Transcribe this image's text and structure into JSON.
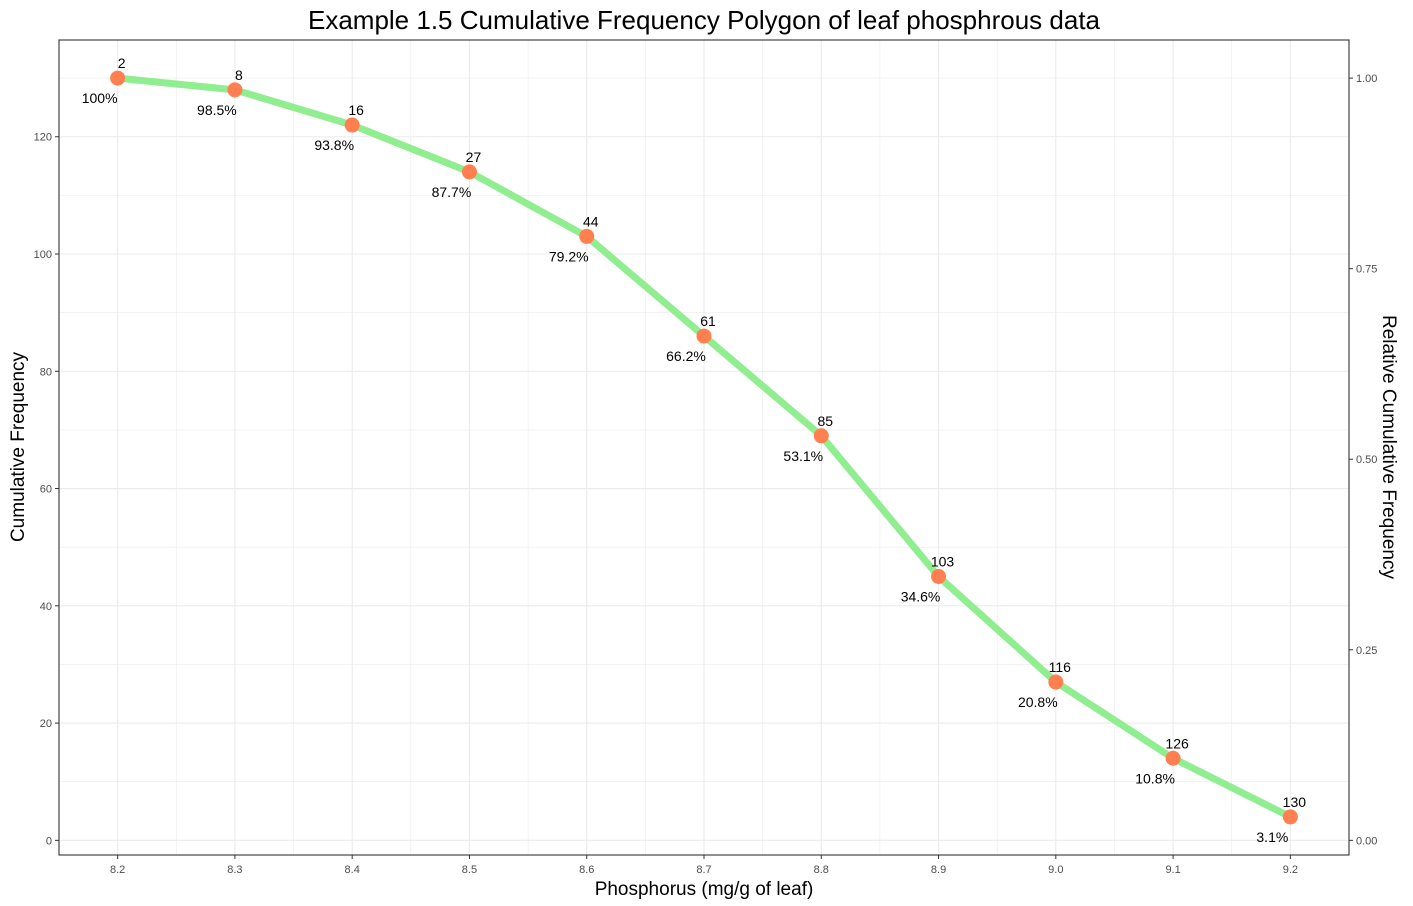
{
  "chart_data": {
    "type": "line",
    "title": "Example 1.5 Cumulative Frequency Polygon of leaf phosphrous data",
    "xlabel": "Phosphorus (mg/g of leaf)",
    "ylabel": "Cumulative Frequency",
    "y2label": "Relative Cumulative Frequency",
    "x": [
      8.2,
      8.3,
      8.4,
      8.5,
      8.6,
      8.7,
      8.8,
      8.9,
      9.0,
      9.1,
      9.2
    ],
    "x_tick_labels": [
      "8.2",
      "8.3",
      "8.4",
      "8.5",
      "8.6",
      "8.7",
      "8.8",
      "8.9",
      "9.0",
      "9.1",
      "9.2"
    ],
    "y": [
      130,
      128,
      122,
      114,
      103,
      86,
      69,
      45,
      27,
      14,
      4
    ],
    "upper_labels": [
      "2",
      "8",
      "16",
      "27",
      "44",
      "61",
      "85",
      "103",
      "116",
      "126",
      "130"
    ],
    "lower_labels": [
      "100%",
      "98.5%",
      "93.8%",
      "87.7%",
      "79.2%",
      "66.2%",
      "53.1%",
      "34.6%",
      "20.8%",
      "10.8%",
      "3.1%"
    ],
    "y_ticks": [
      0,
      20,
      40,
      60,
      80,
      100,
      120
    ],
    "y_tick_labels": [
      "0",
      "20",
      "40",
      "60",
      "80",
      "100",
      "120"
    ],
    "y2_ticks": [
      0.0,
      0.25,
      0.5,
      0.75,
      1.0
    ],
    "y2_tick_labels": [
      "0.00",
      "0.25",
      "0.50",
      "0.75",
      "1.00"
    ],
    "xlim": [
      8.15,
      9.25
    ],
    "ylim": [
      -2.5,
      136.5
    ],
    "y2_scale_max": 130,
    "grid": true,
    "legend": "none",
    "line_color": "#90ee90",
    "point_color": "#ff7f50",
    "grid_color": "#ebebeb",
    "panel_border_color": "#333333"
  }
}
